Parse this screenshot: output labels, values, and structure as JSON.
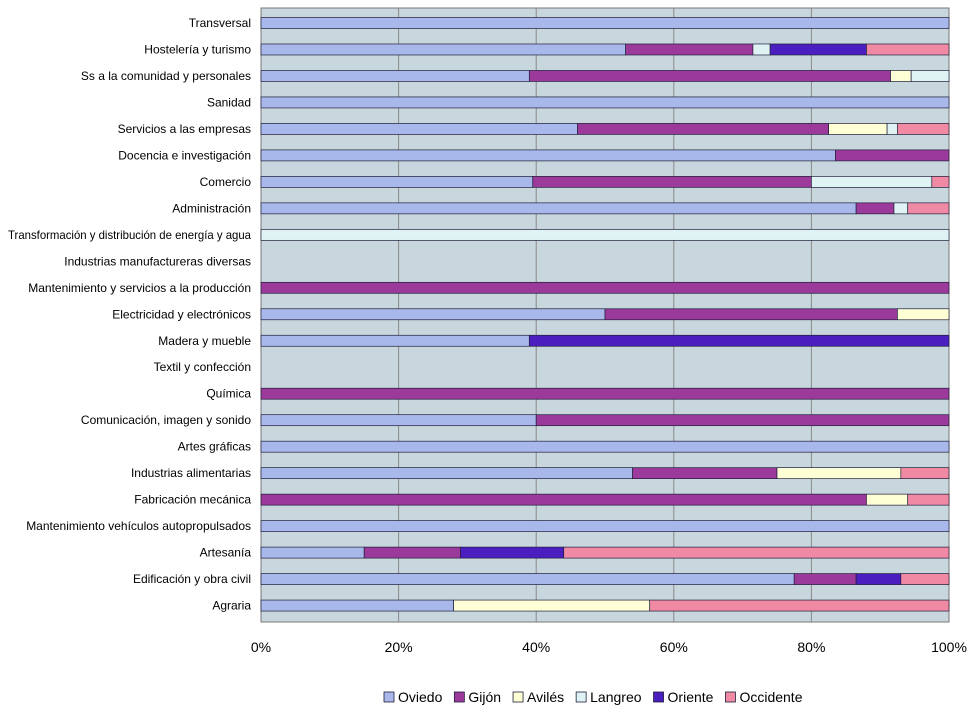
{
  "chart_data": {
    "type": "bar",
    "orientation": "horizontal",
    "stacked": true,
    "normalized": true,
    "xlim": [
      0,
      100
    ],
    "x_ticks": [
      "0%",
      "20%",
      "40%",
      "60%",
      "80%",
      "100%"
    ],
    "grid": "vertical",
    "legend_position": "bottom",
    "categories": [
      "Transversal",
      "Hostelería y turismo",
      "Ss a la comunidad y personales",
      "Sanidad",
      "Servicios a las empresas",
      "Docencia e investigación",
      "Comercio",
      "Administración",
      "Transformación y distribución de energía y agua",
      "Industrias manufactureras diversas",
      "Mantenimiento y servicios a la producción",
      "Electricidad y electrónicos",
      "Madera y mueble",
      "Textil y confección",
      "Química",
      "Comunicación, imagen y sonido",
      "Artes gráficas",
      "Industrias alimentarias",
      "Fabricación mecánica",
      "Mantenimiento vehículos autopropulsados",
      "Artesanía",
      "Edificación y obra civil",
      "Agraria"
    ],
    "series": [
      {
        "name": "Oviedo",
        "color": "#a9b8ea",
        "values": [
          100,
          53,
          39,
          100,
          46,
          83.5,
          39.5,
          86.5,
          0,
          0,
          0,
          50,
          39,
          0,
          0,
          40,
          100,
          54,
          0,
          100,
          15,
          77.5,
          28
        ]
      },
      {
        "name": "Gijón",
        "color": "#9b3a9b",
        "values": [
          0,
          18.5,
          52.5,
          0,
          36.5,
          16.5,
          40.5,
          5.5,
          0,
          0,
          100,
          42.5,
          0,
          0,
          100,
          60,
          0,
          21,
          88,
          0,
          14,
          9,
          0
        ]
      },
      {
        "name": "Avilés",
        "color": "#ffffd6",
        "values": [
          0,
          0,
          3,
          0,
          8.5,
          0,
          0,
          0,
          0,
          0,
          0,
          7.5,
          0,
          0,
          0,
          0,
          0,
          18,
          6,
          0,
          0,
          0,
          28.5
        ]
      },
      {
        "name": "Langreo",
        "color": "#dff3f5",
        "values": [
          0,
          2.5,
          5.5,
          0,
          1.5,
          0,
          17.5,
          2,
          100,
          0,
          0,
          0,
          0,
          0,
          0,
          0,
          0,
          0,
          0,
          0,
          0,
          0,
          0
        ]
      },
      {
        "name": "Oriente",
        "color": "#4b1fbf",
        "values": [
          0,
          14,
          0,
          0,
          0,
          0,
          0,
          0,
          0,
          0,
          0,
          0,
          61,
          0,
          0,
          0,
          0,
          0,
          0,
          0,
          15,
          6.5,
          0
        ]
      },
      {
        "name": "Occidente",
        "color": "#f08aa4",
        "values": [
          0,
          12,
          0,
          0,
          7.5,
          0,
          2.5,
          6,
          0,
          0,
          0,
          0,
          0,
          0,
          0,
          0,
          0,
          7,
          6,
          0,
          56,
          7,
          43.5
        ]
      }
    ]
  }
}
